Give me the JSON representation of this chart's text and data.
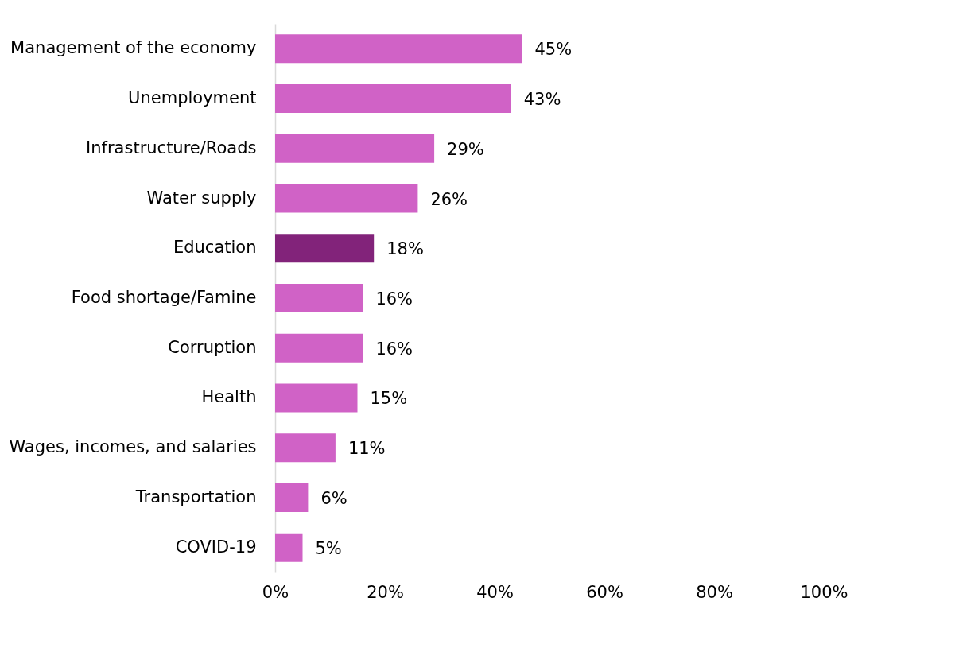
{
  "chart_data": {
    "type": "bar",
    "orientation": "horizontal",
    "categories": [
      "Management of the economy",
      "Unemployment",
      "Infrastructure/Roads",
      "Water supply",
      "Education",
      "Food shortage/Famine",
      "Corruption",
      "Health",
      "Wages, incomes, and salaries",
      "Transportation",
      "COVID-19"
    ],
    "values": [
      45,
      43,
      29,
      26,
      18,
      16,
      16,
      15,
      11,
      6,
      5
    ],
    "value_labels": [
      "45%",
      "43%",
      "29%",
      "26%",
      "18%",
      "16%",
      "16%",
      "15%",
      "11%",
      "6%",
      "5%"
    ],
    "colors": [
      "#d062c6",
      "#d062c6",
      "#d062c6",
      "#d062c6",
      "#82237a",
      "#d062c6",
      "#d062c6",
      "#d062c6",
      "#d062c6",
      "#d062c6",
      "#d062c6"
    ],
    "xlim": [
      0,
      100
    ],
    "xticks": [
      {
        "value": 0,
        "label": "0%"
      },
      {
        "value": 20,
        "label": "20%"
      },
      {
        "value": 40,
        "label": "40%"
      },
      {
        "value": 60,
        "label": "60%"
      },
      {
        "value": 80,
        "label": "80%"
      },
      {
        "value": 100,
        "label": "100%"
      }
    ],
    "grid": false
  }
}
